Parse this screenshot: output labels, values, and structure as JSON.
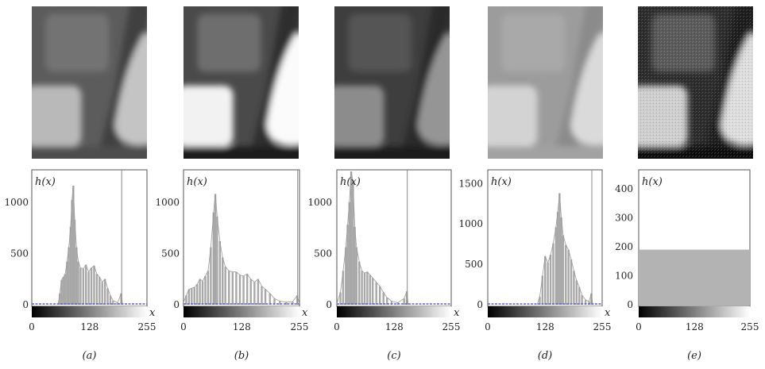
{
  "figure": {
    "panels": [
      {
        "label": "(a)",
        "image_tone": {
          "upper_background": "#5c5c5c",
          "upper_block": "#737373",
          "left_pad": "#b9b9b9",
          "right_region": "#c4c4c4",
          "bar": "#3f3f3f",
          "bottom": "#4d4d4d"
        },
        "chart_data": {
          "type": "bar",
          "ylabel": "h(x)",
          "xlabel": "x",
          "y_ticks": [
            "0",
            "500",
            "1000"
          ],
          "x_ticks": [
            "0",
            "128",
            "255"
          ],
          "ylim": [
            0,
            1300
          ],
          "xlim": [
            0,
            255
          ],
          "marker_x": 199,
          "peaks": [
            {
              "x": 58,
              "y": 0
            },
            {
              "x": 62,
              "y": 110
            },
            {
              "x": 66,
              "y": 240
            },
            {
              "x": 70,
              "y": 270
            },
            {
              "x": 74,
              "y": 300
            },
            {
              "x": 78,
              "y": 420
            },
            {
              "x": 82,
              "y": 560
            },
            {
              "x": 86,
              "y": 760
            },
            {
              "x": 89,
              "y": 1020
            },
            {
              "x": 92,
              "y": 1160
            },
            {
              "x": 95,
              "y": 830
            },
            {
              "x": 99,
              "y": 560
            },
            {
              "x": 103,
              "y": 420
            },
            {
              "x": 108,
              "y": 360
            },
            {
              "x": 114,
              "y": 350
            },
            {
              "x": 120,
              "y": 390
            },
            {
              "x": 126,
              "y": 320
            },
            {
              "x": 132,
              "y": 360
            },
            {
              "x": 138,
              "y": 380
            },
            {
              "x": 144,
              "y": 300
            },
            {
              "x": 150,
              "y": 270
            },
            {
              "x": 156,
              "y": 220
            },
            {
              "x": 162,
              "y": 250
            },
            {
              "x": 168,
              "y": 160
            },
            {
              "x": 174,
              "y": 90
            },
            {
              "x": 180,
              "y": 40
            },
            {
              "x": 190,
              "y": 20
            },
            {
              "x": 198,
              "y": 110
            },
            {
              "x": 201,
              "y": 0
            }
          ]
        }
      },
      {
        "label": "(b)",
        "image_tone": {
          "upper_background": "#4a4a4a",
          "upper_block": "#6e6e6e",
          "left_pad": "#f2f2f2",
          "right_region": "#fbfbfb",
          "bar": "#2d2d2d",
          "bottom": "#1e1e1e"
        },
        "chart_data": {
          "type": "bar",
          "ylabel": "h(x)",
          "xlabel": "x",
          "y_ticks": [
            "0",
            "500",
            "1000"
          ],
          "x_ticks": [
            "0",
            "128",
            "255"
          ],
          "ylim": [
            0,
            1300
          ],
          "xlim": [
            0,
            255
          ],
          "marker_x": 251,
          "peaks": [
            {
              "x": 0,
              "y": 20
            },
            {
              "x": 6,
              "y": 90
            },
            {
              "x": 12,
              "y": 150
            },
            {
              "x": 18,
              "y": 160
            },
            {
              "x": 24,
              "y": 170
            },
            {
              "x": 30,
              "y": 200
            },
            {
              "x": 36,
              "y": 250
            },
            {
              "x": 42,
              "y": 230
            },
            {
              "x": 48,
              "y": 280
            },
            {
              "x": 54,
              "y": 330
            },
            {
              "x": 60,
              "y": 560
            },
            {
              "x": 66,
              "y": 900
            },
            {
              "x": 70,
              "y": 1080
            },
            {
              "x": 74,
              "y": 860
            },
            {
              "x": 80,
              "y": 620
            },
            {
              "x": 86,
              "y": 460
            },
            {
              "x": 92,
              "y": 370
            },
            {
              "x": 100,
              "y": 330
            },
            {
              "x": 108,
              "y": 320
            },
            {
              "x": 116,
              "y": 320
            },
            {
              "x": 124,
              "y": 290
            },
            {
              "x": 132,
              "y": 280
            },
            {
              "x": 140,
              "y": 300
            },
            {
              "x": 148,
              "y": 250
            },
            {
              "x": 156,
              "y": 220
            },
            {
              "x": 164,
              "y": 250
            },
            {
              "x": 172,
              "y": 180
            },
            {
              "x": 180,
              "y": 150
            },
            {
              "x": 190,
              "y": 110
            },
            {
              "x": 200,
              "y": 60
            },
            {
              "x": 212,
              "y": 35
            },
            {
              "x": 226,
              "y": 25
            },
            {
              "x": 240,
              "y": 30
            },
            {
              "x": 250,
              "y": 90
            },
            {
              "x": 255,
              "y": 10
            }
          ]
        }
      },
      {
        "label": "(c)",
        "image_tone": {
          "upper_background": "#3e3e3e",
          "upper_block": "#555555",
          "left_pad": "#8c8c8c",
          "right_region": "#959595",
          "bar": "#2b2b2b",
          "bottom": "#1c1c1c"
        },
        "chart_data": {
          "type": "bar",
          "ylabel": "h(x)",
          "xlabel": "x",
          "y_ticks": [
            "0",
            "500",
            "1000"
          ],
          "x_ticks": [
            "0",
            "128",
            "255"
          ],
          "ylim": [
            0,
            1300
          ],
          "xlim": [
            0,
            255
          ],
          "marker_x": 157,
          "peaks": [
            {
              "x": 0,
              "y": 10
            },
            {
              "x": 8,
              "y": 120
            },
            {
              "x": 14,
              "y": 330
            },
            {
              "x": 20,
              "y": 560
            },
            {
              "x": 24,
              "y": 780
            },
            {
              "x": 28,
              "y": 1000
            },
            {
              "x": 32,
              "y": 1300
            },
            {
              "x": 36,
              "y": 1200
            },
            {
              "x": 40,
              "y": 760
            },
            {
              "x": 44,
              "y": 560
            },
            {
              "x": 50,
              "y": 420
            },
            {
              "x": 56,
              "y": 330
            },
            {
              "x": 62,
              "y": 310
            },
            {
              "x": 68,
              "y": 320
            },
            {
              "x": 74,
              "y": 290
            },
            {
              "x": 80,
              "y": 260
            },
            {
              "x": 88,
              "y": 220
            },
            {
              "x": 96,
              "y": 180
            },
            {
              "x": 104,
              "y": 120
            },
            {
              "x": 112,
              "y": 70
            },
            {
              "x": 122,
              "y": 35
            },
            {
              "x": 136,
              "y": 20
            },
            {
              "x": 150,
              "y": 60
            },
            {
              "x": 156,
              "y": 130
            },
            {
              "x": 159,
              "y": 0
            }
          ]
        }
      },
      {
        "label": "(d)",
        "image_tone": {
          "upper_background": "#9c9c9c",
          "upper_block": "#a9a9a9",
          "left_pad": "#d3d3d3",
          "right_region": "#dadada",
          "bar": "#8b8b8b",
          "bottom": "#a2a2a2"
        },
        "chart_data": {
          "type": "bar",
          "ylabel": "h(x)",
          "xlabel": "x",
          "y_ticks": [
            "0",
            "500",
            "1000",
            "1500"
          ],
          "x_ticks": [
            "0",
            "128",
            "255"
          ],
          "ylim": [
            0,
            1650
          ],
          "xlim": [
            0,
            255
          ],
          "marker_x": 232,
          "peaks": [
            {
              "x": 110,
              "y": 0
            },
            {
              "x": 116,
              "y": 100
            },
            {
              "x": 122,
              "y": 360
            },
            {
              "x": 128,
              "y": 600
            },
            {
              "x": 134,
              "y": 520
            },
            {
              "x": 140,
              "y": 620
            },
            {
              "x": 146,
              "y": 760
            },
            {
              "x": 152,
              "y": 960
            },
            {
              "x": 156,
              "y": 1150
            },
            {
              "x": 160,
              "y": 1380
            },
            {
              "x": 164,
              "y": 1080
            },
            {
              "x": 168,
              "y": 860
            },
            {
              "x": 174,
              "y": 740
            },
            {
              "x": 180,
              "y": 680
            },
            {
              "x": 186,
              "y": 560
            },
            {
              "x": 192,
              "y": 420
            },
            {
              "x": 198,
              "y": 300
            },
            {
              "x": 204,
              "y": 220
            },
            {
              "x": 210,
              "y": 120
            },
            {
              "x": 218,
              "y": 60
            },
            {
              "x": 226,
              "y": 40
            },
            {
              "x": 231,
              "y": 140
            },
            {
              "x": 234,
              "y": 0
            }
          ]
        }
      },
      {
        "label": "(e)",
        "image_tone": {
          "upper_background": "#2c2c2c",
          "upper_block": "#5a5a5a",
          "left_pad": "#cfcfcf",
          "right_region": "#dedede",
          "bar": "#1f1f1f",
          "bottom": "#111111"
        },
        "chart_data": {
          "type": "area",
          "ylabel": "h(x)",
          "xlabel": "",
          "y_ticks": [
            "0",
            "100",
            "200",
            "300",
            "400"
          ],
          "x_ticks": [
            "0",
            "128",
            "255"
          ],
          "ylim": [
            0,
            460
          ],
          "xlim": [
            0,
            255
          ],
          "uniform_level": 190
        }
      }
    ]
  }
}
